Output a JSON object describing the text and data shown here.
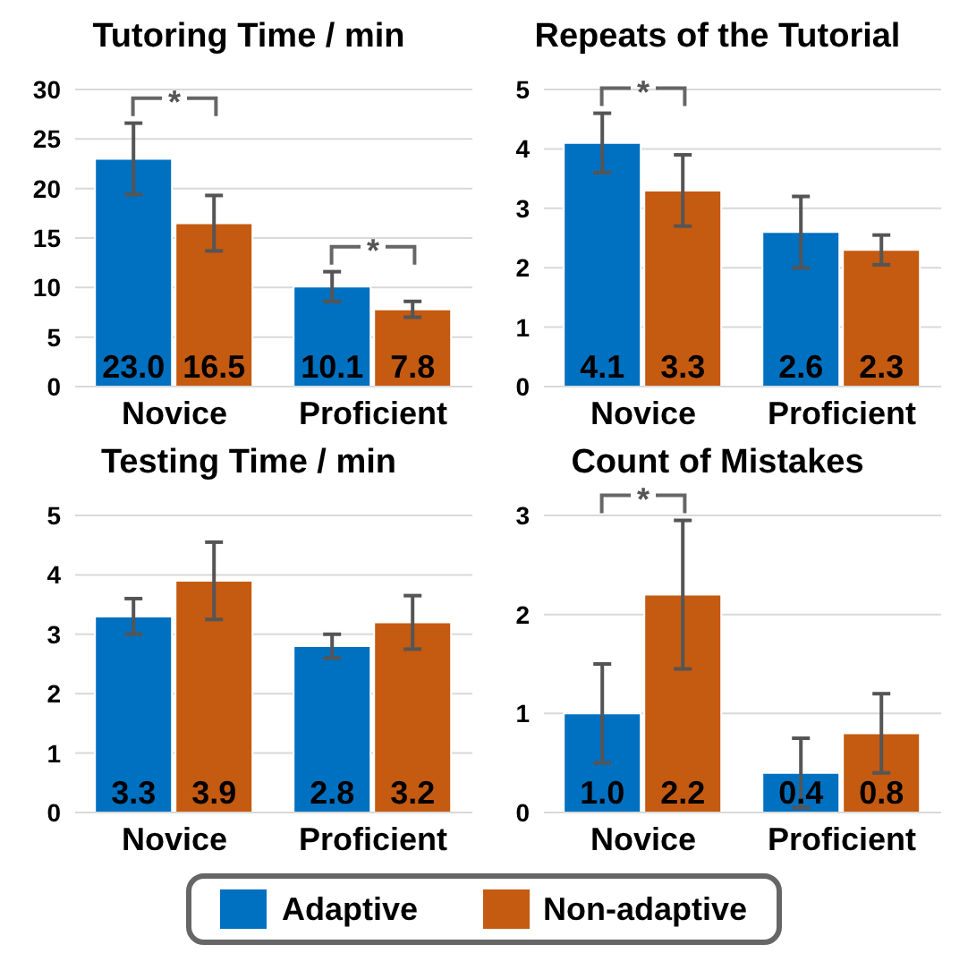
{
  "chart_data": [
    {
      "type": "bar",
      "title": "Tutoring Time / min",
      "categories": [
        "Novice",
        "Proficient"
      ],
      "series": [
        {
          "name": "Adaptive",
          "color": "#0070c0",
          "values": [
            23.0,
            10.1
          ],
          "errors": [
            3.6,
            1.5
          ],
          "value_labels": [
            "23.0",
            "10.1"
          ]
        },
        {
          "name": "Non-adaptive",
          "color": "#c55a11",
          "values": [
            16.5,
            7.8
          ],
          "errors": [
            2.8,
            0.8
          ],
          "value_labels": [
            "16.5",
            "7.8"
          ]
        }
      ],
      "ylim": [
        0,
        30
      ],
      "yticks": [
        0,
        5,
        10,
        15,
        20,
        25,
        30
      ],
      "grid": "y",
      "legend": "bottom",
      "annotations": [
        "*",
        "*"
      ]
    },
    {
      "type": "bar",
      "title": "Repeats of the Tutorial",
      "categories": [
        "Novice",
        "Proficient"
      ],
      "series": [
        {
          "color": "#0070c0",
          "values": [
            4.1,
            2.6
          ],
          "errors": [
            0.5,
            0.6
          ],
          "value_labels": [
            "4.1",
            "2.6"
          ]
        },
        {
          "color": "#c55a11",
          "values": [
            3.3,
            2.3
          ],
          "errors": [
            0.6,
            0.25
          ],
          "value_labels": [
            "3.3",
            "2.3"
          ]
        }
      ],
      "ylim": [
        0,
        5
      ],
      "yticks": [
        0,
        1,
        2,
        3,
        4,
        5
      ],
      "grid": "y",
      "annotations": [
        "*"
      ]
    },
    {
      "type": "bar",
      "title": "Testing Time / min",
      "categories": [
        "Novice",
        "Proficient"
      ],
      "series": [
        {
          "color": "#0070c0",
          "values": [
            3.3,
            2.8
          ],
          "errors": [
            0.3,
            0.2
          ],
          "value_labels": [
            "3.3",
            "2.8"
          ]
        },
        {
          "color": "#c55a11",
          "values": [
            3.9,
            3.2
          ],
          "errors": [
            0.65,
            0.45
          ],
          "value_labels": [
            "3.9",
            "3.2"
          ]
        }
      ],
      "ylim": [
        0,
        5
      ],
      "yticks": [
        0,
        1,
        2,
        3,
        4,
        5
      ],
      "grid": "y"
    },
    {
      "type": "bar",
      "title": "Count of Mistakes",
      "categories": [
        "Novice",
        "Proficient"
      ],
      "series": [
        {
          "color": "#0070c0",
          "values": [
            1.0,
            0.4
          ],
          "errors": [
            0.5,
            0.35
          ],
          "value_labels": [
            "1.0",
            "0.4"
          ]
        },
        {
          "color": "#c55a11",
          "values": [
            2.2,
            0.8
          ],
          "errors": [
            0.75,
            0.4
          ],
          "value_labels": [
            "2.2",
            "0.8"
          ]
        }
      ],
      "ylim": [
        0,
        3
      ],
      "yticks": [
        0,
        1,
        2,
        3
      ],
      "grid": "y",
      "annotations": [
        "*"
      ]
    }
  ]
}
